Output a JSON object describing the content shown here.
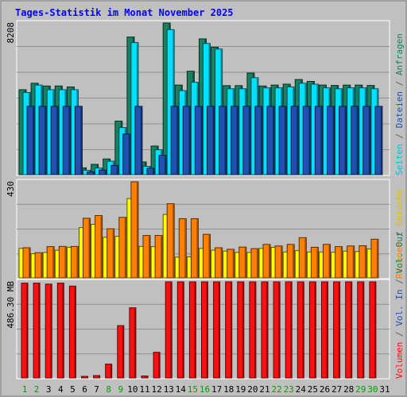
{
  "chart_data": {
    "type": "bar",
    "title": "Tages-Statistik im Monat November 2025",
    "days": [
      "1",
      "2",
      "3",
      "4",
      "5",
      "6",
      "7",
      "8",
      "9",
      "10",
      "11",
      "12",
      "13",
      "14",
      "15",
      "16",
      "17",
      "18",
      "19",
      "20",
      "21",
      "22",
      "23",
      "24",
      "25",
      "26",
      "27",
      "28",
      "29",
      "30",
      "31"
    ],
    "weekend_days": [
      "1",
      "2",
      "8",
      "9",
      "15",
      "16",
      "22",
      "23",
      "29",
      "30"
    ],
    "panels": [
      {
        "id": "top",
        "max_label": "8208",
        "ylim": [
          0,
          8208
        ],
        "series": [
          {
            "name": "Anfragen",
            "color": "#1a8060",
            "values": [
              4600,
              4950,
              4800,
              4800,
              4750,
              370,
              560,
              850,
              2900,
              7450,
              690,
              1550,
              8208,
              4850,
              5600,
              7350,
              6900,
              4820,
              4820,
              5500,
              4800,
              4850,
              4900,
              5150,
              5050,
              4850,
              4830,
              4850,
              4850,
              4830,
              0
            ]
          },
          {
            "name": "Dateien",
            "color": "#00e0ff",
            "values": [
              4450,
              4850,
              4600,
              4600,
              4600,
              240,
              360,
              730,
              2550,
              7150,
              450,
              1350,
              7850,
              4550,
              5000,
              7100,
              6800,
              4650,
              4650,
              5250,
              4700,
              4700,
              4750,
              4950,
              4900,
              4700,
              4650,
              4700,
              4700,
              4650,
              0
            ]
          },
          {
            "name": "Seiten",
            "color": "#2050b0",
            "values": [
              3700,
              3700,
              3700,
              3700,
              3700,
              150,
              250,
              500,
              2200,
              3700,
              350,
              1050,
              3700,
              3700,
              3700,
              3700,
              3700,
              3700,
              3700,
              3700,
              3700,
              3700,
              3700,
              3700,
              3700,
              3700,
              3700,
              3700,
              3700,
              3700,
              0
            ]
          }
        ]
      },
      {
        "id": "middle",
        "max_label": "430",
        "ylim": [
          0,
          430
        ],
        "series": [
          {
            "name": "Besuche",
            "color": "#ffff00",
            "values": [
              132,
              108,
              114,
              124,
              137,
              225,
              240,
              182,
              186,
              355,
              141,
              140,
              284,
              93,
              94,
              132,
              124,
              120,
              114,
              114,
              132,
              137,
              116,
              122,
              116,
              116,
              115,
              120,
              118,
              130,
              0
            ]
          },
          {
            "name": "Rechner",
            "color": "#ff8000",
            "values": [
              135,
              113,
              140,
              141,
              141,
              267,
              279,
              220,
              271,
              430,
              190,
              190,
              332,
              265,
              265,
              195,
              135,
              128,
              138,
              131,
              150,
              143,
              150,
              180,
              137,
              150,
              140,
              143,
              144,
              173,
              0
            ]
          }
        ]
      },
      {
        "id": "bottom",
        "max_label": "486.30 MB",
        "ylim": [
          0,
          486.3
        ],
        "series": [
          {
            "name": "Volumen",
            "color": "#ff1010",
            "values": [
              480,
              480,
              475,
              480,
              465,
              8,
              12,
              70,
              265,
              355,
              10,
              130,
              486.3,
              486.3,
              486.3,
              486.3,
              486.3,
              486.3,
              486.3,
              486.3,
              486.3,
              486.3,
              486.3,
              486.3,
              486.3,
              486.3,
              486.3,
              486.3,
              486.3,
              486.3,
              0
            ]
          }
        ]
      }
    ],
    "right_labels": {
      "top": [
        {
          "text": "Seiten",
          "color": "#00c0e0"
        },
        {
          "text": " / ",
          "color": "#606060"
        },
        {
          "text": "Dateien",
          "color": "#2050b0"
        },
        {
          "text": " / ",
          "color": "#606060"
        },
        {
          "text": "Anfragen",
          "color": "#1a8060"
        }
      ],
      "middle": [
        {
          "text": "Rechner",
          "color": "#ff8000"
        },
        {
          "text": " / ",
          "color": "#606060"
        },
        {
          "text": "Besuche",
          "color": "#e0c000"
        }
      ],
      "bottom": [
        {
          "text": "Volumen",
          "color": "#ff1010"
        },
        {
          "text": " / ",
          "color": "#606060"
        },
        {
          "text": "Vol. In",
          "color": "#2050b0"
        },
        {
          "text": " / ",
          "color": "#606060"
        },
        {
          "text": "Vol. Out",
          "color": "#1a8060"
        }
      ]
    },
    "colors": {
      "background": "#c0c0c0",
      "plot": "#c0c0c0",
      "title": "#0000ff",
      "weekday_label": "#000000",
      "weekend_label": "#00a000"
    }
  }
}
